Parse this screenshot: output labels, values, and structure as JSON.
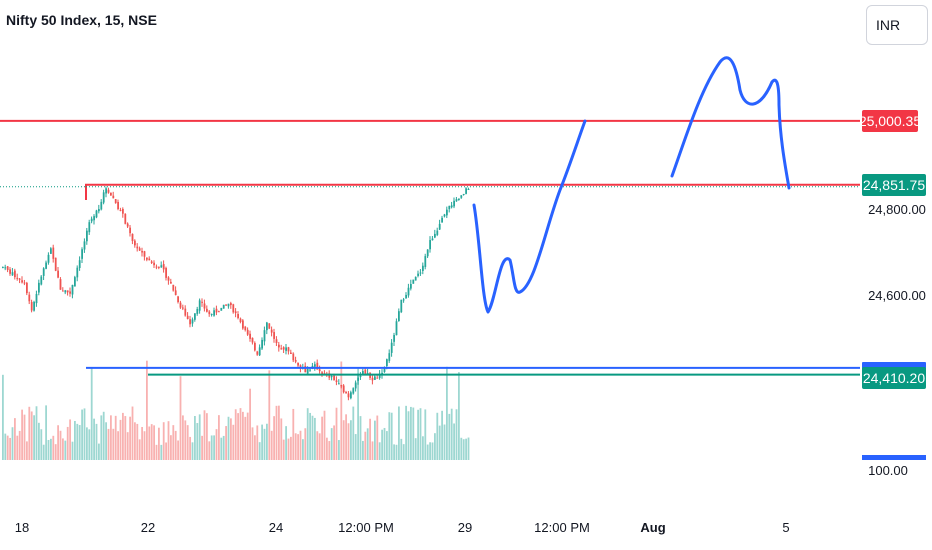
{
  "header": {
    "symbol_title": "Nifty 50 Index, 15, NSE",
    "currency_button": "INR"
  },
  "colors": {
    "up": "#26a69a",
    "down": "#ef5350",
    "resistance_line": "#f23645",
    "support_line_blue": "#2962ff",
    "support_line_green": "#089981",
    "drawing": "#2962ff",
    "axis_text": "#131722"
  },
  "chart_data": {
    "type": "candlestick",
    "symbol": "Nifty 50 Index",
    "interval": "15",
    "exchange": "NSE",
    "currency": "INR",
    "x_tick_labels": [
      "18",
      "22",
      "24",
      "12:00 PM",
      "29",
      "12:00 PM",
      "Aug",
      "5"
    ],
    "y_tick_labels": [
      "24,800.00",
      "24,600.00",
      "100.00"
    ],
    "ylim": [
      24360,
      25150
    ],
    "horizontal_lines": [
      {
        "price": 25000.35,
        "label": "25,000.35",
        "color": "#f23645"
      },
      {
        "price": 24851.75,
        "label": "24,851.75",
        "color": "#089981"
      },
      {
        "price": 24410.2,
        "label": "24,410.20",
        "color": "#089981"
      },
      {
        "price": 24426.0,
        "label": "",
        "color": "#2962ff"
      }
    ],
    "close_path": [
      [
        0,
        24660
      ],
      [
        5,
        24640
      ],
      [
        9,
        24625
      ],
      [
        12,
        24560
      ],
      [
        16,
        24640
      ],
      [
        20,
        24700
      ],
      [
        24,
        24610
      ],
      [
        28,
        24600
      ],
      [
        32,
        24680
      ],
      [
        36,
        24760
      ],
      [
        40,
        24800
      ],
      [
        43,
        24845
      ],
      [
        46,
        24820
      ],
      [
        50,
        24780
      ],
      [
        54,
        24720
      ],
      [
        58,
        24690
      ],
      [
        62,
        24670
      ],
      [
        66,
        24660
      ],
      [
        70,
        24620
      ],
      [
        74,
        24570
      ],
      [
        78,
        24530
      ],
      [
        82,
        24580
      ],
      [
        86,
        24550
      ],
      [
        90,
        24560
      ],
      [
        94,
        24575
      ],
      [
        98,
        24545
      ],
      [
        102,
        24500
      ],
      [
        106,
        24460
      ],
      [
        110,
        24530
      ],
      [
        114,
        24480
      ],
      [
        118,
        24470
      ],
      [
        122,
        24440
      ],
      [
        126,
        24420
      ],
      [
        130,
        24430
      ],
      [
        134,
        24410
      ],
      [
        138,
        24400
      ],
      [
        141,
        24380
      ],
      [
        144,
        24360
      ],
      [
        147,
        24395
      ],
      [
        150,
        24420
      ],
      [
        154,
        24400
      ],
      [
        158,
        24410
      ],
      [
        162,
        24480
      ],
      [
        166,
        24580
      ],
      [
        170,
        24620
      ],
      [
        174,
        24650
      ],
      [
        178,
        24720
      ],
      [
        182,
        24760
      ],
      [
        186,
        24800
      ],
      [
        190,
        24820
      ],
      [
        194,
        24845
      ]
    ]
  }
}
